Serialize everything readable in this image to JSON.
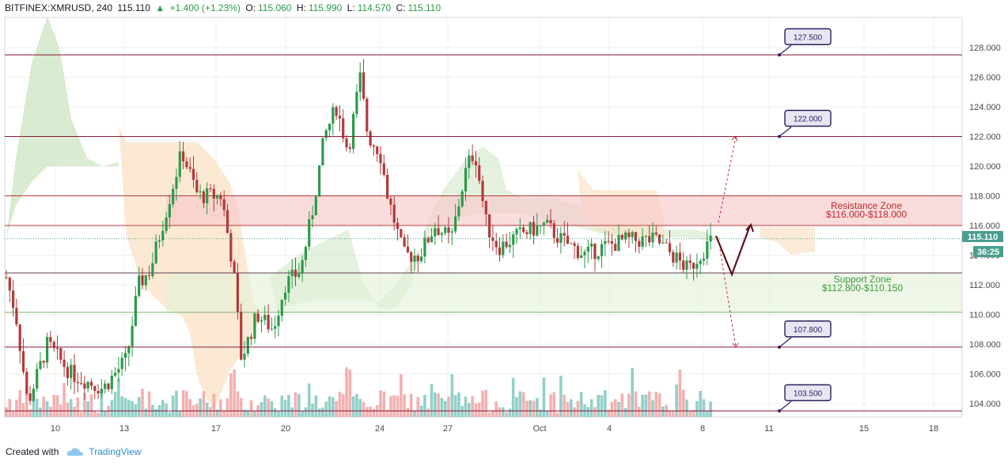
{
  "header": {
    "symbol": "BITFINEX:XMRUSD, 240",
    "last": "115.110",
    "change": "+1.400 (+1.23%)",
    "o_label": "O:",
    "o_value": "115.060",
    "h_label": "H:",
    "h_value": "115.990",
    "l_label": "L:",
    "l_value": "114.570",
    "c_label": "C:",
    "c_value": "115.110"
  },
  "footer": {
    "created_with": "Created with",
    "brand": "TradingView"
  },
  "colors": {
    "up": "#2c9a4b",
    "down": "#b23a3a",
    "resistance": "#f7c9c9",
    "support": "#e3f1d7",
    "level_line": "#8b1a3a",
    "callout_border": "#2a1f5c",
    "callout_fill": "#e9e6f3",
    "cloud_green": "#cfe6c4",
    "cloud_orange": "#fbe3c9",
    "projection": "#5c0f1a"
  },
  "chart_data": {
    "type": "candlestick",
    "symbol": "BITFINEX:XMRUSD",
    "interval": "240",
    "ylim": [
      103,
      129.5
    ],
    "y_ticks": [
      "104.000",
      "106.000",
      "108.000",
      "110.000",
      "112.000",
      "114.000",
      "116.000",
      "118.000",
      "120.000",
      "122.000",
      "124.000",
      "126.000",
      "128.000"
    ],
    "x_ticks": [
      "10",
      "13",
      "17",
      "20",
      "24",
      "27",
      "Oct",
      "4",
      "8",
      "11",
      "15",
      "18"
    ],
    "current_price": "115.110",
    "countdown": "36:25",
    "ohlc": {
      "open": 115.06,
      "high": 115.99,
      "low": 114.57,
      "close": 115.11
    },
    "zones": [
      {
        "name": "Resistance Zone",
        "range_label": "$116.000-$118.000",
        "low": 116.0,
        "high": 118.0
      },
      {
        "name": "Support Zone",
        "range_label": "$112.800-$110.150",
        "low": 110.15,
        "high": 112.8
      }
    ],
    "levels": [
      {
        "label": "127.500",
        "value": 127.5
      },
      {
        "label": "122.000",
        "value": 122.0
      },
      {
        "label": "107.800",
        "value": 107.8
      },
      {
        "label": "103.500",
        "value": 103.5
      }
    ],
    "projection": {
      "points": [
        115.3,
        112.7,
        116.0
      ]
    }
  }
}
